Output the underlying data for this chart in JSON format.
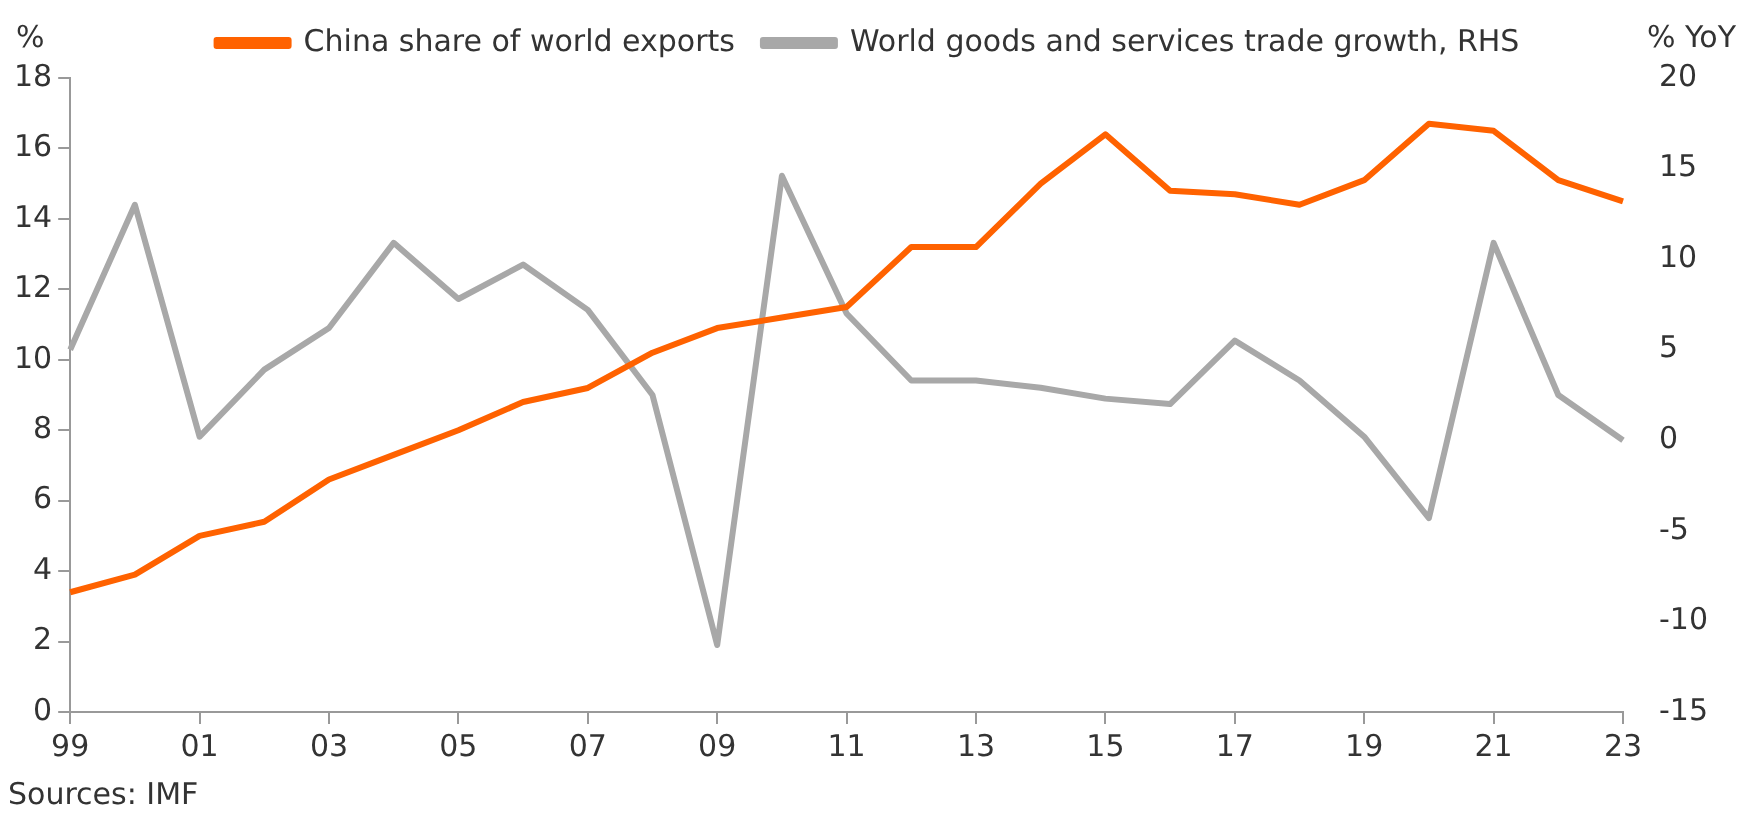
{
  "chart_data": {
    "type": "line",
    "categories": [
      "99",
      null,
      "01",
      null,
      "03",
      null,
      "05",
      null,
      "07",
      null,
      "09",
      null,
      "11",
      null,
      "13",
      null,
      "15",
      null,
      "17",
      null,
      "19",
      null,
      "21",
      null,
      "23"
    ],
    "series": [
      {
        "name": "China share of world exports",
        "color": "#ff6200",
        "values": [
          3.4,
          3.9,
          5.0,
          5.4,
          6.6,
          7.3,
          8.0,
          8.8,
          9.2,
          10.2,
          10.9,
          11.2,
          11.5,
          13.2,
          13.2,
          15.0,
          16.4,
          14.8,
          14.7,
          14.4,
          15.1,
          16.7,
          16.5,
          15.1,
          14.5
        ]
      },
      {
        "name": "World goods and services trade growth, RHS",
        "color": "#a8a8a8",
        "axis": "y2",
        "values": [
          5.0,
          13.0,
          0.2,
          3.9,
          6.2,
          10.9,
          7.8,
          9.7,
          7.2,
          2.5,
          -11.3,
          14.6,
          7.0,
          3.3,
          3.3,
          2.9,
          2.3,
          2.0,
          5.5,
          3.3,
          0.2,
          -4.3,
          10.9,
          2.5,
          0.0
        ]
      }
    ],
    "ylabel": "%",
    "y2label": "% YoY",
    "ylim": [
      0,
      18
    ],
    "yticks": [
      0,
      2,
      4,
      6,
      8,
      10,
      12,
      14,
      16,
      18
    ],
    "y2lim": [
      -15,
      20
    ],
    "y2ticks": [
      -15,
      -10,
      -5,
      0,
      5,
      10,
      15,
      20
    ],
    "grid": false,
    "legend": "top",
    "marker": "none",
    "line_style": "solid",
    "annotations": [
      "Sources: IMF"
    ]
  }
}
